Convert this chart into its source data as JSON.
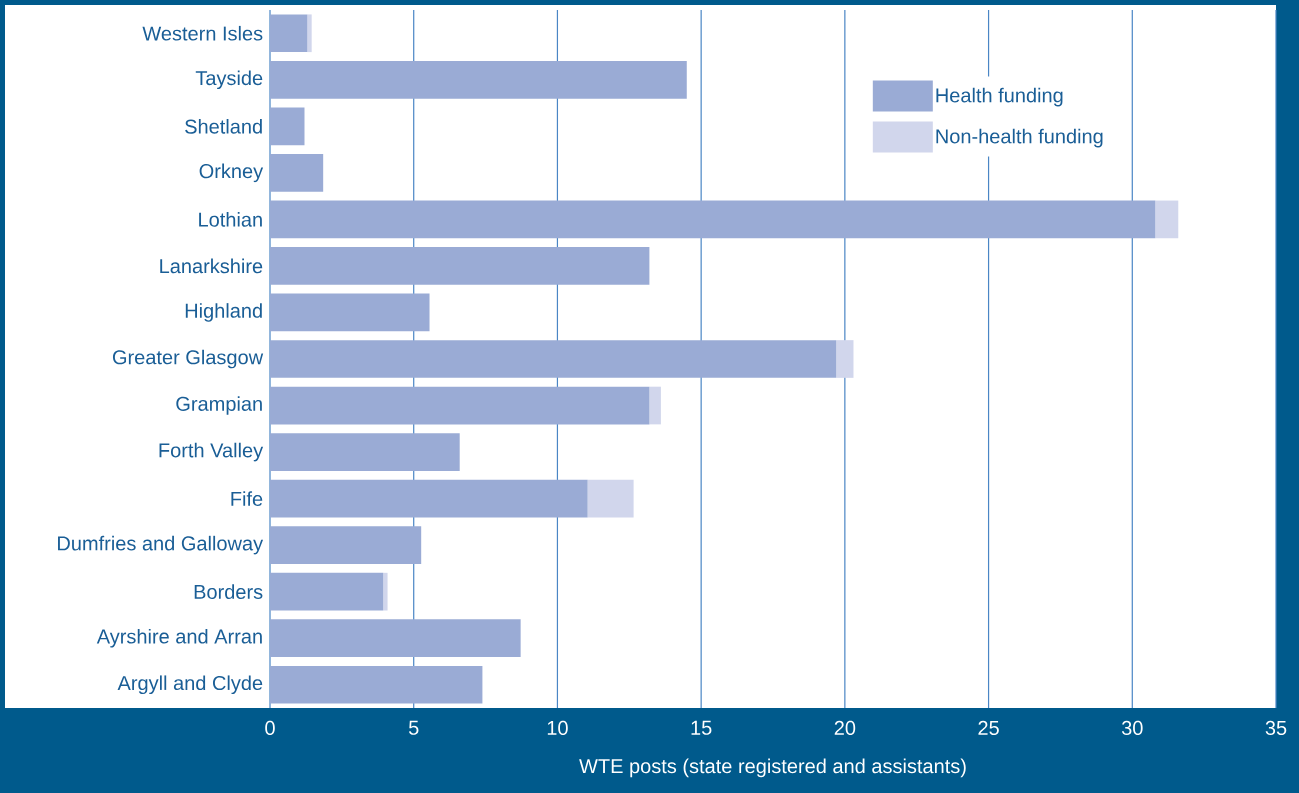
{
  "chart_data": {
    "type": "bar",
    "orientation": "horizontal",
    "stacked": true,
    "categories": [
      "Western Isles",
      "Tayside",
      "Shetland",
      "Orkney",
      "Lothian",
      "Lanarkshire",
      "Highland",
      "Greater Glasgow",
      "Grampian",
      "Forth Valley",
      "Fife",
      "Dumfries and Galloway",
      "Borders",
      "Ayrshire and Arran",
      "Argyll and Clyde"
    ],
    "series": [
      {
        "name": "Health funding",
        "color": "#9aabd5",
        "values": [
          1.3,
          14.5,
          1.2,
          1.85,
          30.8,
          13.2,
          5.55,
          19.7,
          13.2,
          6.6,
          11.05,
          5.26,
          3.94,
          8.72,
          7.39
        ]
      },
      {
        "name": "Non-health funding",
        "color": "#d1d6ec",
        "values": [
          0.15,
          0,
          0,
          0,
          0.8,
          0,
          0,
          0.6,
          0.4,
          0,
          1.6,
          0,
          0.15,
          0,
          0
        ]
      }
    ],
    "xlabel": "WTE posts (state registered and assistants)",
    "xlim": [
      0,
      35
    ],
    "xticks": [
      0,
      5,
      10,
      15,
      20,
      25,
      30,
      35
    ],
    "grid": "x",
    "legend": "top right"
  }
}
